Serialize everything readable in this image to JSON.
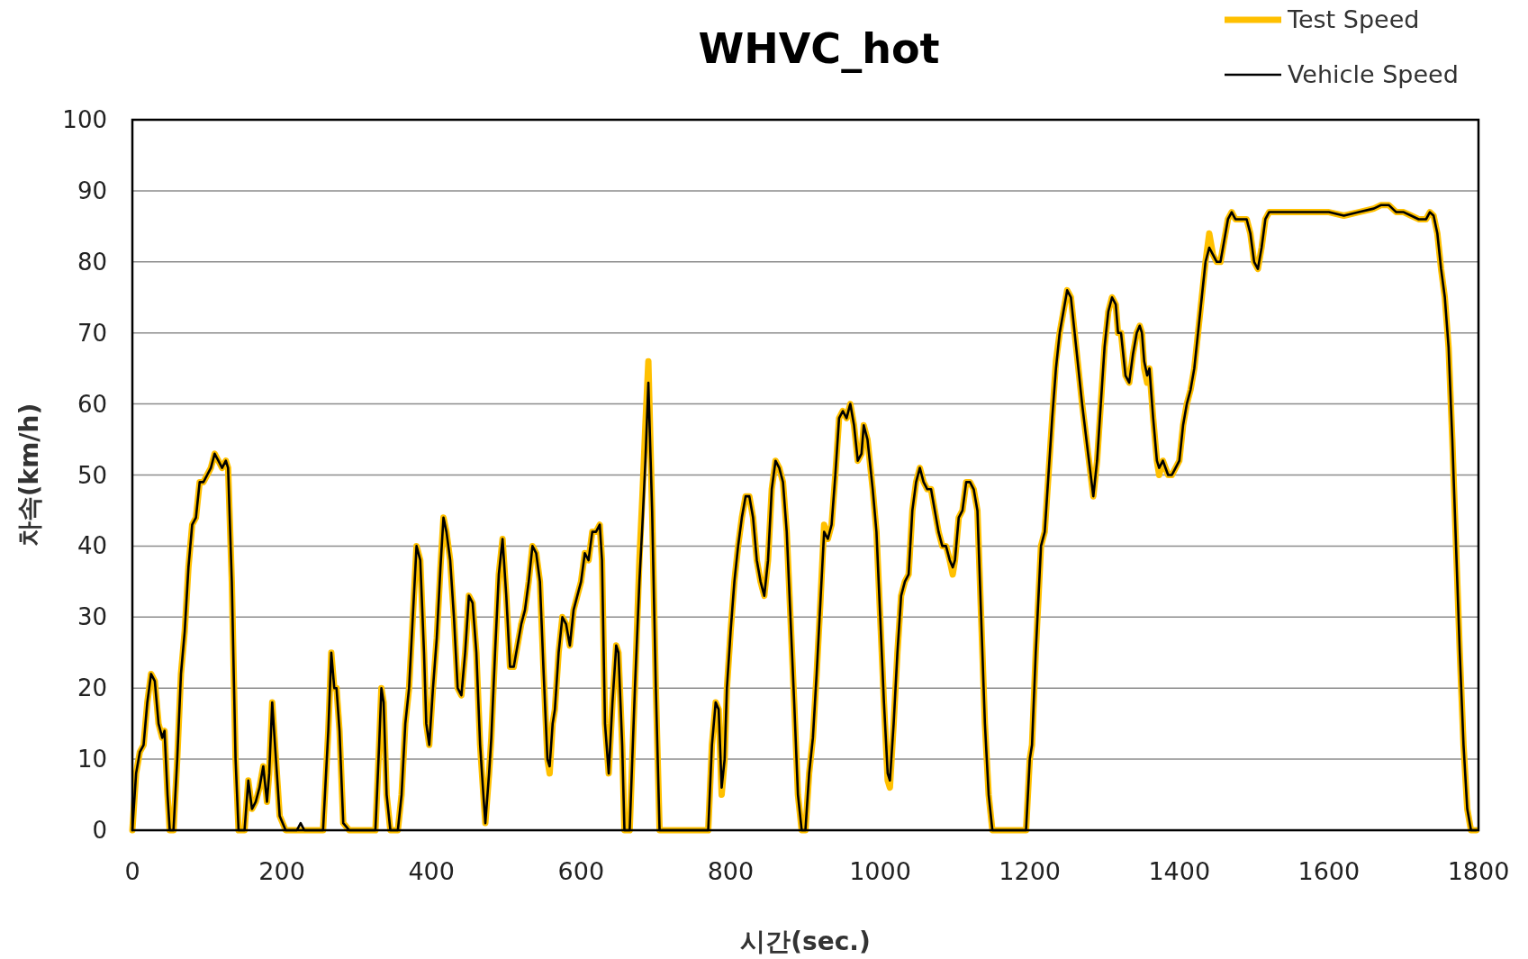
{
  "chart_data": {
    "type": "line",
    "title": "WHVC_hot",
    "xlabel": "시간(sec.)",
    "ylabel": "차속(km/h)",
    "xlim": [
      0,
      1800
    ],
    "xticks": [
      0,
      200,
      400,
      600,
      800,
      1000,
      1200,
      1400,
      1600,
      1800
    ],
    "ylim": [
      0,
      100
    ],
    "yticks": [
      0,
      10,
      20,
      30,
      40,
      50,
      60,
      70,
      80,
      90,
      100
    ],
    "grid": "y",
    "legend": "top right",
    "line_style": "solid",
    "x": [
      0,
      5,
      10,
      15,
      20,
      25,
      30,
      35,
      40,
      43,
      47,
      50,
      55,
      60,
      65,
      70,
      75,
      80,
      85,
      90,
      95,
      100,
      105,
      110,
      115,
      120,
      125,
      128,
      133,
      138,
      142,
      150,
      155,
      160,
      165,
      170,
      175,
      180,
      183,
      187,
      192,
      197,
      205,
      220,
      225,
      230,
      255,
      262,
      266,
      270,
      273,
      277,
      282,
      290,
      325,
      330,
      333,
      336,
      340,
      345,
      355,
      360,
      365,
      370,
      375,
      380,
      385,
      390,
      393,
      397,
      402,
      407,
      412,
      416,
      420,
      425,
      430,
      435,
      440,
      445,
      450,
      455,
      460,
      465,
      470,
      472,
      477,
      480,
      485,
      490,
      495,
      500,
      505,
      510,
      515,
      520,
      525,
      530,
      535,
      540,
      545,
      550,
      555,
      558,
      562,
      565,
      570,
      575,
      580,
      585,
      590,
      595,
      600,
      605,
      610,
      615,
      620,
      625,
      628,
      632,
      637,
      642,
      647,
      650,
      655,
      658,
      665,
      672,
      678,
      682,
      686,
      690,
      695,
      700,
      705,
      770,
      775,
      780,
      784,
      788,
      792,
      795,
      800,
      805,
      810,
      815,
      820,
      825,
      830,
      835,
      840,
      845,
      850,
      855,
      860,
      865,
      870,
      875,
      880,
      885,
      890,
      895,
      900,
      905,
      910,
      915,
      920,
      925,
      930,
      935,
      940,
      945,
      950,
      955,
      960,
      965,
      970,
      975,
      978,
      983,
      990,
      995,
      1000,
      1005,
      1010,
      1013,
      1018,
      1023,
      1028,
      1033,
      1038,
      1043,
      1048,
      1053,
      1058,
      1063,
      1068,
      1073,
      1078,
      1083,
      1088,
      1093,
      1097,
      1100,
      1105,
      1110,
      1115,
      1120,
      1125,
      1130,
      1135,
      1140,
      1145,
      1150,
      1195,
      1200,
      1203,
      1208,
      1215,
      1220,
      1225,
      1230,
      1235,
      1240,
      1245,
      1250,
      1255,
      1262,
      1270,
      1278,
      1285,
      1290,
      1295,
      1300,
      1305,
      1310,
      1315,
      1318,
      1322,
      1328,
      1333,
      1338,
      1343,
      1347,
      1350,
      1353,
      1357,
      1360,
      1365,
      1370,
      1373,
      1378,
      1385,
      1390,
      1395,
      1400,
      1405,
      1410,
      1415,
      1420,
      1425,
      1430,
      1435,
      1440,
      1445,
      1450,
      1455,
      1460,
      1465,
      1470,
      1475,
      1480,
      1485,
      1490,
      1495,
      1500,
      1505,
      1510,
      1515,
      1520,
      1530,
      1540,
      1560,
      1580,
      1600,
      1620,
      1640,
      1660,
      1670,
      1680,
      1690,
      1700,
      1710,
      1720,
      1730,
      1735,
      1740,
      1745,
      1750,
      1755,
      1760,
      1765,
      1770,
      1775,
      1780,
      1785,
      1790,
      1797
    ],
    "series": [
      {
        "name": "Test Speed",
        "color": "#ffc000",
        "values": [
          0,
          8,
          11,
          12,
          18,
          22,
          21,
          15,
          13,
          14,
          5,
          0,
          0,
          10,
          22,
          28,
          37,
          43,
          44,
          49,
          49,
          50,
          51,
          53,
          52,
          51,
          52,
          51,
          35,
          10,
          0,
          0,
          7,
          3,
          4,
          6,
          9,
          4,
          8,
          18,
          10,
          2,
          0,
          0,
          0,
          0,
          0,
          14,
          25,
          20,
          20,
          14,
          1,
          0,
          0,
          12,
          20,
          18,
          5,
          0,
          0,
          5,
          15,
          20,
          30,
          40,
          38,
          25,
          15,
          12,
          20,
          27,
          37,
          44,
          42,
          38,
          30,
          20,
          19,
          25,
          33,
          32,
          25,
          12,
          4,
          1,
          8,
          13,
          25,
          36,
          41,
          33,
          23,
          23,
          26,
          29,
          31,
          35,
          40,
          39,
          35,
          22,
          10,
          8,
          15,
          17,
          25,
          30,
          29,
          26,
          31,
          33,
          35,
          39,
          38,
          42,
          42,
          43,
          38,
          15,
          8,
          18,
          26,
          25,
          12,
          0,
          0,
          20,
          38,
          47,
          57,
          66,
          45,
          20,
          0,
          0,
          12,
          18,
          17,
          5,
          10,
          20,
          28,
          35,
          40,
          44,
          47,
          47,
          44,
          38,
          35,
          33,
          38,
          48,
          52,
          51,
          49,
          42,
          30,
          18,
          5,
          0,
          0,
          8,
          13,
          22,
          32,
          43,
          41,
          43,
          50,
          58,
          59,
          58,
          60,
          57,
          52,
          53,
          57,
          55,
          48,
          42,
          30,
          18,
          7,
          6,
          15,
          25,
          33,
          35,
          36,
          45,
          49,
          51,
          49,
          48,
          48,
          45,
          42,
          40,
          40,
          38,
          36,
          38,
          44,
          45,
          49,
          49,
          48,
          45,
          30,
          15,
          5,
          0,
          0,
          10,
          12,
          25,
          40,
          42,
          50,
          58,
          66,
          70,
          73,
          76,
          75,
          68,
          60,
          53,
          47,
          52,
          60,
          68,
          73,
          75,
          74,
          70,
          70,
          64,
          63,
          67,
          70,
          71,
          70,
          65,
          63,
          65,
          58,
          52,
          50,
          52,
          50,
          50,
          51,
          52,
          57,
          60,
          62,
          65,
          70,
          75,
          80,
          84,
          81,
          80,
          80,
          83,
          86,
          87,
          86,
          86,
          86,
          86,
          84,
          80,
          79,
          82,
          86,
          87,
          87,
          87,
          87,
          87,
          87,
          86.5,
          87,
          87.5,
          88,
          88,
          87,
          87,
          86.5,
          86,
          86,
          87,
          86.5,
          84,
          79,
          75,
          68,
          55,
          40,
          25,
          12,
          3,
          0,
          0
        ]
      },
      {
        "name": "Vehicle Speed",
        "color": "#000000",
        "values": [
          0,
          8,
          11,
          12,
          18,
          22,
          21,
          15,
          13,
          14,
          5,
          0,
          0,
          10,
          22,
          28,
          37,
          43,
          44,
          49,
          49,
          50,
          51,
          53,
          52,
          51,
          52,
          51,
          35,
          10,
          0,
          0,
          7,
          3,
          4,
          6,
          9,
          4,
          8,
          18,
          10,
          2,
          0,
          0,
          1,
          0,
          0,
          14,
          25,
          20,
          20,
          14,
          1,
          0,
          0,
          12,
          20,
          18,
          5,
          0,
          0,
          5,
          15,
          20,
          30,
          40,
          38,
          25,
          15,
          12,
          20,
          27,
          37,
          44,
          42,
          38,
          30,
          20,
          19,
          25,
          33,
          32,
          25,
          12,
          4,
          1,
          8,
          13,
          25,
          36,
          41,
          33,
          23,
          23,
          26,
          29,
          31,
          35,
          40,
          39,
          35,
          22,
          10,
          9,
          15,
          17,
          25,
          30,
          29,
          26,
          31,
          33,
          35,
          39,
          38,
          42,
          42,
          43,
          38,
          15,
          8,
          18,
          26,
          25,
          12,
          0,
          0,
          20,
          35,
          43,
          52,
          63,
          45,
          20,
          0,
          0,
          12,
          18,
          17,
          6,
          10,
          20,
          28,
          35,
          40,
          44,
          47,
          47,
          44,
          38,
          35,
          33,
          38,
          48,
          52,
          51,
          49,
          42,
          30,
          18,
          5,
          0,
          0,
          8,
          13,
          22,
          32,
          42,
          41,
          43,
          50,
          58,
          59,
          58,
          60,
          57,
          52,
          53,
          57,
          55,
          48,
          42,
          30,
          18,
          8,
          7,
          15,
          25,
          33,
          35,
          36,
          45,
          49,
          51,
          49,
          48,
          48,
          45,
          42,
          40,
          40,
          38,
          37,
          38,
          44,
          45,
          49,
          49,
          48,
          45,
          30,
          15,
          5,
          0,
          0,
          10,
          12,
          25,
          40,
          42,
          50,
          58,
          65,
          70,
          73,
          76,
          75,
          68,
          60,
          53,
          47,
          52,
          60,
          68,
          73,
          75,
          74,
          70,
          70,
          64,
          63,
          67,
          70,
          71,
          70,
          66,
          64,
          65,
          58,
          52,
          51,
          52,
          50,
          50,
          51,
          52,
          57,
          60,
          62,
          65,
          70,
          75,
          80,
          82,
          81,
          80,
          80,
          83,
          86,
          87,
          86,
          86,
          86,
          86,
          84,
          80,
          79,
          82,
          86,
          87,
          87,
          87,
          87,
          87,
          87,
          86.5,
          87,
          87.5,
          88,
          88,
          87,
          87,
          86.5,
          86,
          86,
          87,
          86.5,
          84,
          79,
          75,
          68,
          55,
          40,
          25,
          12,
          3,
          0,
          0
        ]
      }
    ]
  }
}
